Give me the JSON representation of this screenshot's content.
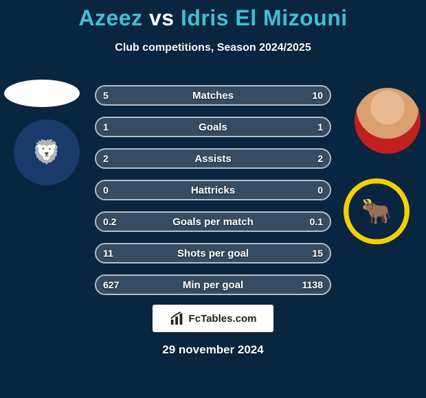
{
  "background_color": "#0a2540",
  "header": {
    "player1": "Azeez",
    "vs": "vs",
    "player2": "Idris El Mizouni",
    "player_color": "#3ec1d3",
    "vs_color": "#ffffff",
    "subtitle": "Club competitions, Season 2024/2025",
    "subtitle_color": "#ffffff"
  },
  "avatars": {
    "left_bg": "#ffffff",
    "right_skin": "#e8b890"
  },
  "clubs": {
    "left": {
      "name": "millwall-crest",
      "bg": "#1a3a6b",
      "ring": "#ffffff"
    },
    "right": {
      "name": "oxford-united-crest",
      "bg": "#0a2540",
      "ring": "#f5d000"
    }
  },
  "stats": {
    "row_border_color": "rgba(255,255,255,0.7)",
    "fill_color": "rgba(255,255,255,0.18)",
    "text_color": "#ffffff",
    "rows": [
      {
        "label": "Matches",
        "left": "5",
        "right": "10",
        "fill_left_pct": 38,
        "fill_right_pct": 62
      },
      {
        "label": "Goals",
        "left": "1",
        "right": "1",
        "fill_left_pct": 50,
        "fill_right_pct": 50
      },
      {
        "label": "Assists",
        "left": "2",
        "right": "2",
        "fill_left_pct": 50,
        "fill_right_pct": 50
      },
      {
        "label": "Hattricks",
        "left": "0",
        "right": "0",
        "fill_left_pct": 50,
        "fill_right_pct": 50
      },
      {
        "label": "Goals per match",
        "left": "0.2",
        "right": "0.1",
        "fill_left_pct": 62,
        "fill_right_pct": 38
      },
      {
        "label": "Shots per goal",
        "left": "11",
        "right": "15",
        "fill_left_pct": 34,
        "fill_right_pct": 66
      },
      {
        "label": "Min per goal",
        "left": "627",
        "right": "1138",
        "fill_left_pct": 22,
        "fill_right_pct": 78
      }
    ]
  },
  "brand": {
    "text": "FcTables.com",
    "bg": "#ffffff",
    "text_color": "#222222"
  },
  "footer": {
    "date": "29 november 2024",
    "text_color": "#ffffff"
  }
}
